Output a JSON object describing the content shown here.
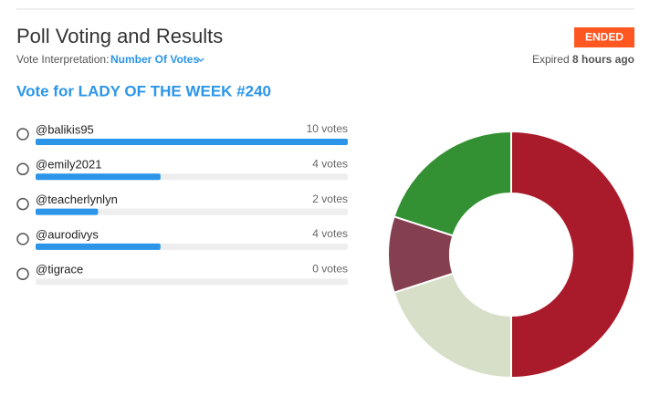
{
  "header": {
    "title": "Poll Voting and Results",
    "interpretation_label": "Vote Interpretation:",
    "interpretation_value": "Number Of Votes",
    "status": "ENDED",
    "expired_prefix": "Expired",
    "expired_time": "8 hours ago"
  },
  "poll": {
    "question": "Vote for LADY OF THE WEEK #240",
    "options": [
      {
        "name": "@balikis95",
        "votes": 10,
        "votes_label": "10 votes",
        "color": "#a91b2a"
      },
      {
        "name": "@emily2021",
        "votes": 4,
        "votes_label": "4 votes",
        "color": "#d7dfc9"
      },
      {
        "name": "@teacherlynlyn",
        "votes": 2,
        "votes_label": "2 votes",
        "color": "#843f50"
      },
      {
        "name": "@aurodivys",
        "votes": 4,
        "votes_label": "4 votes",
        "color": "#339133"
      },
      {
        "name": "@tigrace",
        "votes": 0,
        "votes_label": "0 votes",
        "color": "#999999"
      }
    ]
  }
}
